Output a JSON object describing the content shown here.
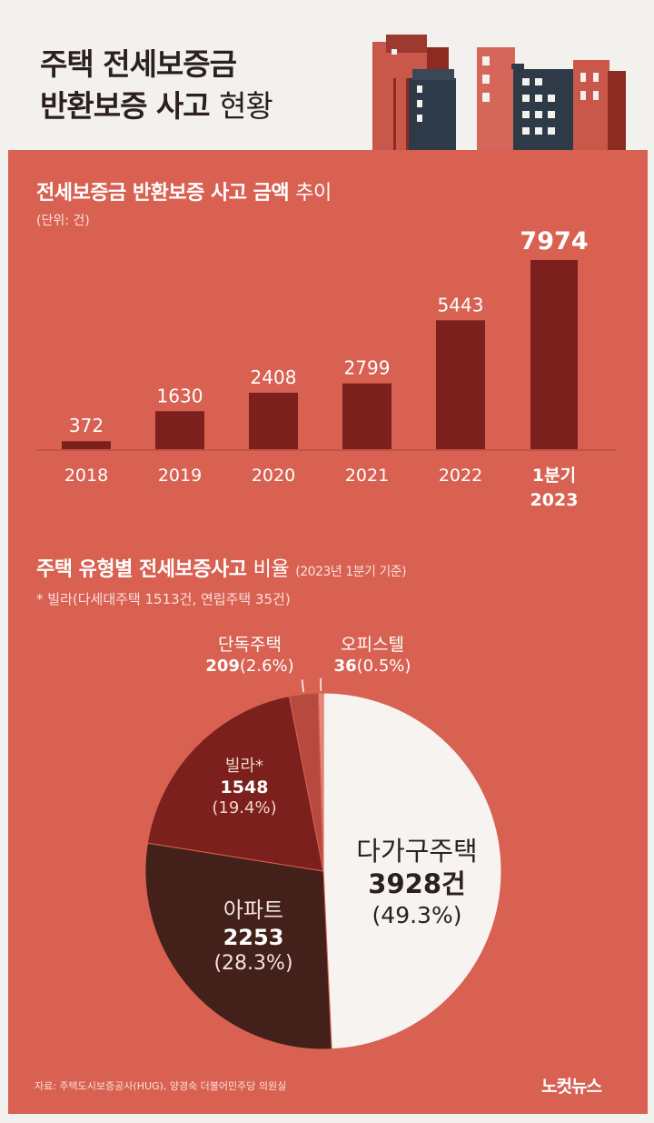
{
  "header": {
    "title_line1": "주택 전세보증금",
    "title_line2_bold": "반환보증 사고",
    "title_line2_light": "현황"
  },
  "colors": {
    "panel": "#d86152",
    "bar": "#7b201c",
    "villa": "#7b201c",
    "apartment": "#432019",
    "multi_family": "#f7f3f0",
    "detached": "#b74a3e",
    "officetel": "#e9877a"
  },
  "bar_section": {
    "title_bold": "전세보증금 반환보증 사고 금액",
    "title_light": "추이",
    "unit": "(단위: 건)"
  },
  "pie_section": {
    "title_bold": "주택 유형별 전세보증사고",
    "title_light": "비율",
    "basis": "(2023년 1분기 기준)",
    "footnote": "* 빌라(다세대주택 1513건, 연립주택 35건)"
  },
  "chart_data": [
    {
      "type": "bar",
      "title": "전세보증금 반환보증 사고 금액 추이",
      "ylabel": "(단위: 건)",
      "categories": [
        "2018",
        "2019",
        "2020",
        "2021",
        "2022",
        "1분기\n2023"
      ],
      "values": [
        372,
        1630,
        2408,
        2799,
        5443,
        7974
      ],
      "value_labels": [
        "372",
        "1630",
        "2408",
        "2799",
        "5443",
        "7974"
      ],
      "highlight_index": 5,
      "ylim": [
        0,
        8200
      ]
    },
    {
      "type": "pie",
      "title": "주택 유형별 전세보증사고 비율 (2023년 1분기 기준)",
      "slices": [
        {
          "name": "다가구주택",
          "value": 3928,
          "value_label": "3928건",
          "percent_label": "(49.3%)",
          "color": "#f7f3f0"
        },
        {
          "name": "아파트",
          "value": 2253,
          "value_label": "2253",
          "percent_label": "(28.3%)",
          "color": "#432019"
        },
        {
          "name": "빌라*",
          "value": 1548,
          "value_label": "1548",
          "percent_label": "(19.4%)",
          "color": "#7b201c"
        },
        {
          "name": "단독주택",
          "value": 209,
          "value_label": "209",
          "percent_label": "(2.6%)",
          "color": "#b74a3e"
        },
        {
          "name": "오피스텔",
          "value": 36,
          "value_label": "36",
          "percent_label": "(0.5%)",
          "color": "#e9877a"
        }
      ]
    }
  ],
  "footer": {
    "source": "자료: 주택도시보증공사(HUG), 양경숙 더불어민주당 의원실",
    "logo": "노컷뉴스"
  }
}
